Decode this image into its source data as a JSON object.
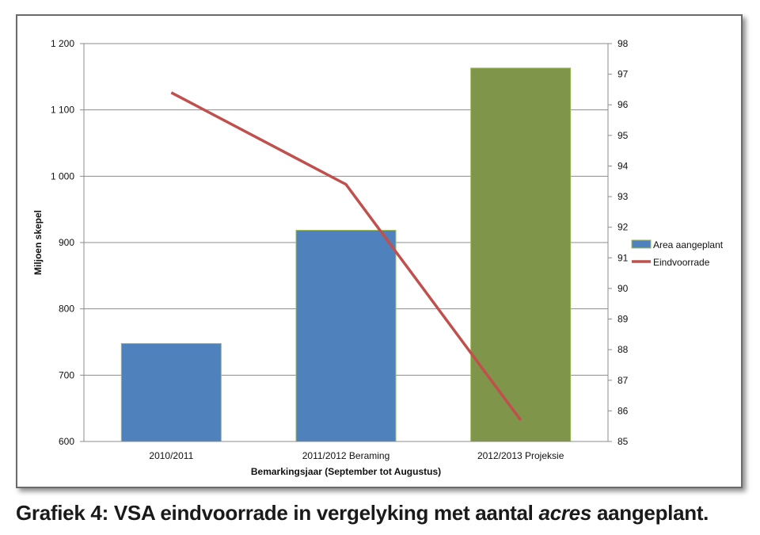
{
  "caption": {
    "prefix": "Grafiek 4: VSA eindvoorrade in vergelyking met aantal",
    "italic": "acres",
    "suffix": "aangeplant."
  },
  "chart_data": {
    "type": "bar",
    "categories": [
      "2010/2011",
      "2011/2012 Beraming",
      "2012/2013 Projeksie"
    ],
    "xlabel": "Bemarkingsjaar (September tot Augustus)",
    "ylabel": "Miljoen skepel",
    "ylim": [
      600,
      1200
    ],
    "yticks": [
      600,
      700,
      800,
      900,
      1000,
      1100,
      1200
    ],
    "ytick_labels": [
      "600",
      "700",
      "800",
      "900",
      "1 000",
      "1 100",
      "1 200"
    ],
    "y2lim": [
      85,
      98
    ],
    "y2ticks": [
      85,
      86,
      87,
      88,
      89,
      90,
      91,
      92,
      93,
      94,
      95,
      96,
      97,
      98
    ],
    "grid": true,
    "legend_position": "right",
    "series": [
      {
        "name": "Area aangeplant",
        "type": "bar",
        "axis": "y2",
        "values": [
          88.2,
          91.9,
          97.2
        ],
        "colors": [
          "#4f81bd",
          "#4f81bd",
          "#7f9549"
        ],
        "edge_color": "#9bbb59"
      },
      {
        "name": "Eindvoorrade",
        "type": "line",
        "axis": "y2",
        "values": [
          96.4,
          93.4,
          85.7
        ],
        "color": "#c0504d"
      }
    ]
  }
}
